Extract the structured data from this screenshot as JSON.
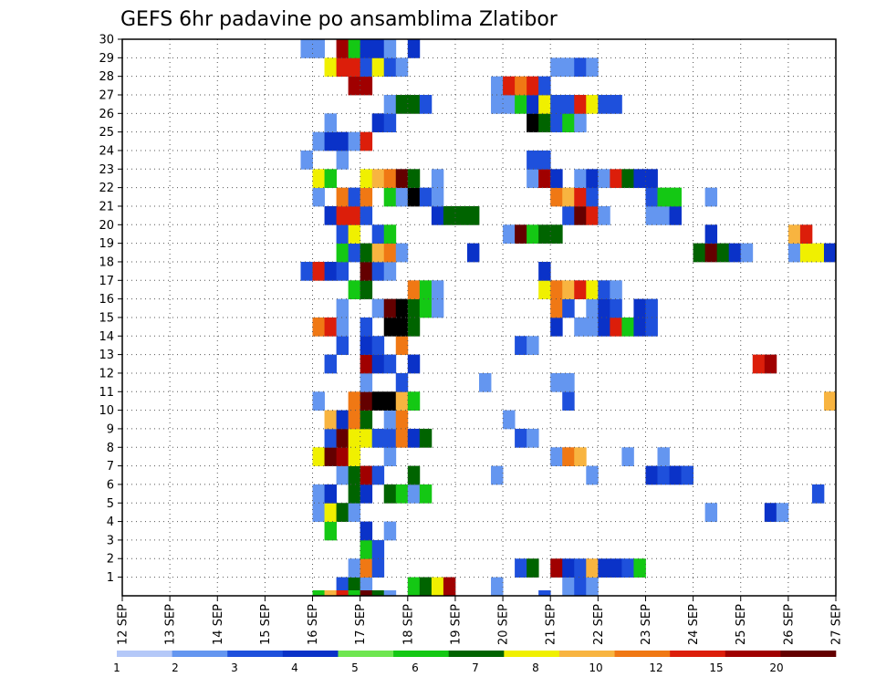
{
  "chart_data": {
    "type": "heatmap",
    "title": "GEFS 6hr padavine po ansamblima Zlatibor",
    "xlabel": "",
    "ylabel": "",
    "x_ticks": [
      "12 SEP",
      "13 SEP",
      "14 SEP",
      "15 SEP",
      "16 SEP",
      "17 SEP",
      "18 SEP",
      "19 SEP",
      "20 SEP",
      "21 SEP",
      "22 SEP",
      "23 SEP",
      "24 SEP",
      "25 SEP",
      "26 SEP",
      "27 SEP"
    ],
    "y_ticks": [
      1,
      2,
      3,
      4,
      5,
      6,
      7,
      8,
      9,
      10,
      11,
      12,
      13,
      14,
      15,
      16,
      17,
      18,
      19,
      20,
      21,
      22,
      23,
      24,
      25,
      26,
      27,
      28,
      29,
      30
    ],
    "x_unit": "6-hour steps from 12 SEP 00Z",
    "grid": true,
    "colorbar": {
      "levels": [
        "1",
        "2",
        "3",
        "4",
        "5",
        "6",
        "7",
        "8",
        "10",
        "12",
        "15",
        "20"
      ],
      "colors": [
        "#b4c8f8",
        "#6496f0",
        "#1e50dc",
        "#0a32c8",
        "#6ee650",
        "#14c814",
        "#006400",
        "#f0f000",
        "#f8b440",
        "#f07814",
        "#dc1e0a",
        "#a00000",
        "#640000"
      ]
    },
    "cells": [
      [
        1,
        18,
        2
      ],
      [
        1,
        19,
        6
      ],
      [
        1,
        20,
        1
      ],
      [
        1,
        24,
        5
      ],
      [
        1,
        25,
        6
      ],
      [
        1,
        26,
        7
      ],
      [
        1,
        27,
        11
      ],
      [
        1,
        31,
        1
      ],
      [
        1,
        37,
        1
      ],
      [
        1,
        38,
        2
      ],
      [
        1,
        39,
        1
      ],
      [
        2,
        19,
        1
      ],
      [
        2,
        20,
        9
      ],
      [
        2,
        21,
        2
      ],
      [
        2,
        33,
        2
      ],
      [
        2,
        34,
        6
      ],
      [
        2,
        36,
        11
      ],
      [
        2,
        37,
        3
      ],
      [
        2,
        38,
        2
      ],
      [
        2,
        39,
        8
      ],
      [
        2,
        40,
        3
      ],
      [
        2,
        41,
        3
      ],
      [
        2,
        42,
        2
      ],
      [
        2,
        43,
        5
      ],
      [
        3,
        20,
        5
      ],
      [
        3,
        21,
        2
      ],
      [
        4,
        17,
        5
      ],
      [
        4,
        20,
        3
      ],
      [
        4,
        22,
        1
      ],
      [
        5,
        16,
        1
      ],
      [
        5,
        17,
        7
      ],
      [
        5,
        18,
        6
      ],
      [
        5,
        19,
        1
      ],
      [
        5,
        49,
        1
      ],
      [
        5,
        54,
        3
      ],
      [
        5,
        55,
        1
      ],
      [
        6,
        16,
        1
      ],
      [
        6,
        17,
        3
      ],
      [
        6,
        19,
        6
      ],
      [
        6,
        20,
        3
      ],
      [
        6,
        22,
        6
      ],
      [
        6,
        23,
        5
      ],
      [
        6,
        24,
        1
      ],
      [
        6,
        25,
        5
      ],
      [
        6,
        58,
        2
      ],
      [
        7,
        18,
        1
      ],
      [
        7,
        19,
        6
      ],
      [
        7,
        20,
        11
      ],
      [
        7,
        21,
        2
      ],
      [
        7,
        24,
        6
      ],
      [
        7,
        31,
        1
      ],
      [
        7,
        39,
        1
      ],
      [
        7,
        44,
        3
      ],
      [
        7,
        45,
        2
      ],
      [
        7,
        46,
        3
      ],
      [
        7,
        47,
        2
      ],
      [
        8,
        16,
        7
      ],
      [
        8,
        17,
        12
      ],
      [
        8,
        18,
        11
      ],
      [
        8,
        19,
        7
      ],
      [
        8,
        22,
        1
      ],
      [
        8,
        36,
        1
      ],
      [
        8,
        37,
        9
      ],
      [
        8,
        38,
        8
      ],
      [
        8,
        42,
        1
      ],
      [
        8,
        45,
        1
      ],
      [
        9,
        17,
        2
      ],
      [
        9,
        18,
        12
      ],
      [
        9,
        19,
        7
      ],
      [
        9,
        20,
        7
      ],
      [
        9,
        21,
        2
      ],
      [
        9,
        22,
        2
      ],
      [
        9,
        23,
        9
      ],
      [
        9,
        24,
        3
      ],
      [
        9,
        25,
        6
      ],
      [
        9,
        33,
        2
      ],
      [
        9,
        34,
        1
      ],
      [
        10,
        17,
        8
      ],
      [
        10,
        18,
        3
      ],
      [
        10,
        19,
        9
      ],
      [
        10,
        20,
        6
      ],
      [
        10,
        22,
        1
      ],
      [
        10,
        23,
        9
      ],
      [
        10,
        32,
        1
      ],
      [
        11,
        16,
        1
      ],
      [
        11,
        19,
        9
      ],
      [
        11,
        20,
        12
      ],
      [
        11,
        21,
        13
      ],
      [
        11,
        22,
        13
      ],
      [
        11,
        23,
        8
      ],
      [
        11,
        24,
        5
      ],
      [
        11,
        37,
        2
      ],
      [
        11,
        59,
        8
      ],
      [
        12,
        20,
        1
      ],
      [
        12,
        23,
        2
      ],
      [
        12,
        30,
        1
      ],
      [
        12,
        36,
        1
      ],
      [
        12,
        37,
        1
      ],
      [
        13,
        17,
        2
      ],
      [
        13,
        20,
        11
      ],
      [
        13,
        21,
        3
      ],
      [
        13,
        22,
        2
      ],
      [
        13,
        24,
        3
      ],
      [
        13,
        53,
        10
      ],
      [
        13,
        54,
        11
      ],
      [
        14,
        18,
        2
      ],
      [
        14,
        20,
        3
      ],
      [
        14,
        21,
        2
      ],
      [
        14,
        23,
        9
      ],
      [
        14,
        33,
        2
      ],
      [
        14,
        34,
        1
      ],
      [
        15,
        16,
        9
      ],
      [
        15,
        17,
        10
      ],
      [
        15,
        18,
        1
      ],
      [
        15,
        20,
        2
      ],
      [
        15,
        22,
        13
      ],
      [
        15,
        23,
        13
      ],
      [
        15,
        24,
        6
      ],
      [
        15,
        36,
        3
      ],
      [
        15,
        38,
        1
      ],
      [
        15,
        39,
        1
      ],
      [
        15,
        40,
        3
      ],
      [
        15,
        41,
        10
      ],
      [
        15,
        42,
        5
      ],
      [
        15,
        43,
        3
      ],
      [
        15,
        44,
        2
      ],
      [
        16,
        18,
        1
      ],
      [
        16,
        21,
        1
      ],
      [
        16,
        22,
        12
      ],
      [
        16,
        23,
        13
      ],
      [
        16,
        24,
        6
      ],
      [
        16,
        25,
        5
      ],
      [
        16,
        26,
        1
      ],
      [
        16,
        36,
        9
      ],
      [
        16,
        37,
        2
      ],
      [
        16,
        39,
        1
      ],
      [
        16,
        40,
        3
      ],
      [
        16,
        41,
        2
      ],
      [
        16,
        43,
        3
      ],
      [
        16,
        44,
        2
      ],
      [
        17,
        19,
        5
      ],
      [
        17,
        20,
        6
      ],
      [
        17,
        24,
        9
      ],
      [
        17,
        25,
        5
      ],
      [
        17,
        26,
        1
      ],
      [
        17,
        35,
        7
      ],
      [
        17,
        36,
        9
      ],
      [
        17,
        37,
        8
      ],
      [
        17,
        38,
        10
      ],
      [
        17,
        39,
        7
      ],
      [
        17,
        40,
        2
      ],
      [
        17,
        41,
        1
      ],
      [
        18,
        15,
        2
      ],
      [
        18,
        16,
        10
      ],
      [
        18,
        17,
        3
      ],
      [
        18,
        18,
        2
      ],
      [
        18,
        20,
        12
      ],
      [
        18,
        21,
        2
      ],
      [
        18,
        22,
        1
      ],
      [
        18,
        35,
        3
      ],
      [
        19,
        18,
        5
      ],
      [
        19,
        19,
        2
      ],
      [
        19,
        20,
        6
      ],
      [
        19,
        21,
        8
      ],
      [
        19,
        22,
        9
      ],
      [
        19,
        23,
        1
      ],
      [
        19,
        29,
        3
      ],
      [
        19,
        48,
        6
      ],
      [
        19,
        49,
        12
      ],
      [
        19,
        50,
        6
      ],
      [
        19,
        51,
        3
      ],
      [
        19,
        52,
        1
      ],
      [
        19,
        56,
        1
      ],
      [
        19,
        57,
        7
      ],
      [
        19,
        58,
        7
      ],
      [
        19,
        59,
        3
      ],
      [
        20,
        18,
        2
      ],
      [
        20,
        19,
        7
      ],
      [
        20,
        21,
        2
      ],
      [
        20,
        22,
        5
      ],
      [
        20,
        32,
        1
      ],
      [
        20,
        33,
        12
      ],
      [
        20,
        34,
        5
      ],
      [
        20,
        35,
        6
      ],
      [
        20,
        36,
        6
      ],
      [
        20,
        49,
        3
      ],
      [
        20,
        56,
        8
      ],
      [
        20,
        57,
        10
      ],
      [
        21,
        17,
        3
      ],
      [
        21,
        18,
        10
      ],
      [
        21,
        19,
        10
      ],
      [
        21,
        20,
        2
      ],
      [
        21,
        26,
        3
      ],
      [
        21,
        27,
        6
      ],
      [
        21,
        28,
        6
      ],
      [
        21,
        29,
        6
      ],
      [
        21,
        37,
        2
      ],
      [
        21,
        38,
        12
      ],
      [
        21,
        39,
        10
      ],
      [
        21,
        40,
        1
      ],
      [
        21,
        44,
        1
      ],
      [
        21,
        45,
        1
      ],
      [
        21,
        46,
        3
      ],
      [
        22,
        16,
        1
      ],
      [
        22,
        18,
        9
      ],
      [
        22,
        19,
        2
      ],
      [
        22,
        20,
        9
      ],
      [
        22,
        22,
        5
      ],
      [
        22,
        23,
        1
      ],
      [
        22,
        24,
        13
      ],
      [
        22,
        25,
        2
      ],
      [
        22,
        26,
        1
      ],
      [
        22,
        36,
        9
      ],
      [
        22,
        37,
        8
      ],
      [
        22,
        38,
        10
      ],
      [
        22,
        39,
        2
      ],
      [
        22,
        44,
        2
      ],
      [
        22,
        45,
        5
      ],
      [
        22,
        46,
        5
      ],
      [
        22,
        49,
        1
      ],
      [
        23,
        16,
        7
      ],
      [
        23,
        17,
        5
      ],
      [
        23,
        20,
        7
      ],
      [
        23,
        21,
        8
      ],
      [
        23,
        22,
        9
      ],
      [
        23,
        23,
        12
      ],
      [
        23,
        24,
        6
      ],
      [
        23,
        26,
        1
      ],
      [
        23,
        34,
        1
      ],
      [
        23,
        35,
        11
      ],
      [
        23,
        36,
        3
      ],
      [
        23,
        38,
        1
      ],
      [
        23,
        39,
        3
      ],
      [
        23,
        40,
        1
      ],
      [
        23,
        41,
        10
      ],
      [
        23,
        42,
        6
      ],
      [
        23,
        43,
        3
      ],
      [
        23,
        44,
        3
      ],
      [
        24,
        15,
        1
      ],
      [
        24,
        18,
        1
      ],
      [
        24,
        34,
        2
      ],
      [
        24,
        35,
        2
      ],
      [
        25,
        16,
        1
      ],
      [
        25,
        17,
        3
      ],
      [
        25,
        18,
        3
      ],
      [
        25,
        19,
        1
      ],
      [
        25,
        20,
        10
      ],
      [
        26,
        17,
        1
      ],
      [
        26,
        21,
        3
      ],
      [
        26,
        22,
        2
      ],
      [
        26,
        34,
        13
      ],
      [
        26,
        35,
        6
      ],
      [
        26,
        36,
        2
      ],
      [
        26,
        37,
        5
      ],
      [
        26,
        38,
        1
      ],
      [
        27,
        22,
        1
      ],
      [
        27,
        23,
        6
      ],
      [
        27,
        24,
        6
      ],
      [
        27,
        25,
        2
      ],
      [
        27,
        31,
        1
      ],
      [
        27,
        32,
        1
      ],
      [
        27,
        33,
        5
      ],
      [
        27,
        34,
        3
      ],
      [
        27,
        35,
        7
      ],
      [
        27,
        36,
        2
      ],
      [
        27,
        37,
        2
      ],
      [
        27,
        38,
        10
      ],
      [
        27,
        39,
        7
      ],
      [
        27,
        40,
        2
      ],
      [
        27,
        41,
        2
      ],
      [
        28,
        19,
        11
      ],
      [
        28,
        20,
        11
      ],
      [
        28,
        31,
        1
      ],
      [
        28,
        32,
        10
      ],
      [
        28,
        33,
        9
      ],
      [
        28,
        34,
        10
      ],
      [
        28,
        35,
        2
      ],
      [
        29,
        17,
        7
      ],
      [
        29,
        18,
        10
      ],
      [
        29,
        19,
        10
      ],
      [
        29,
        20,
        2
      ],
      [
        29,
        21,
        7
      ],
      [
        29,
        22,
        2
      ],
      [
        29,
        23,
        1
      ],
      [
        29,
        36,
        1
      ],
      [
        29,
        37,
        1
      ],
      [
        29,
        38,
        2
      ],
      [
        29,
        39,
        1
      ],
      [
        30,
        15,
        1
      ],
      [
        30,
        16,
        1
      ],
      [
        30,
        18,
        11
      ],
      [
        30,
        19,
        5
      ],
      [
        30,
        20,
        3
      ],
      [
        30,
        21,
        3
      ],
      [
        30,
        22,
        1
      ],
      [
        30,
        24,
        3
      ]
    ],
    "bottom_row": [
      [
        16,
        5
      ],
      [
        17,
        8
      ],
      [
        18,
        10
      ],
      [
        19,
        5
      ],
      [
        20,
        12
      ],
      [
        21,
        6
      ],
      [
        22,
        1
      ],
      [
        35,
        2
      ]
    ]
  }
}
